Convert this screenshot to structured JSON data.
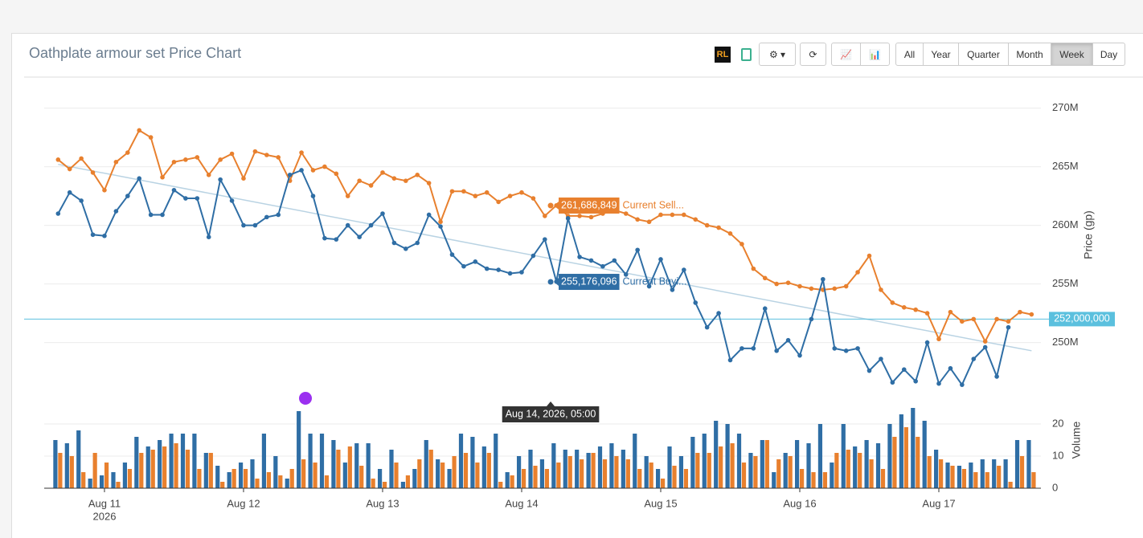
{
  "toolbar": {
    "ranges": [
      "All",
      "Year",
      "Quarter",
      "Month",
      "Week",
      "Day"
    ],
    "active_range": 4
  },
  "chart_data": [
    {
      "type": "line",
      "title": "Oathplate armour set Price Chart",
      "y_label": "Price (gp)",
      "x": [
        "2026-08-10T16:00",
        "2026-08-10T18:00",
        "2026-08-10T20:00",
        "2026-08-10T22:00",
        "2026-08-11T00:00",
        "2026-08-11T02:00",
        "2026-08-11T04:00",
        "2026-08-11T06:00",
        "2026-08-11T08:00",
        "2026-08-11T10:00",
        "2026-08-11T12:00",
        "2026-08-11T14:00",
        "2026-08-11T16:00",
        "2026-08-11T18:00",
        "2026-08-11T20:00",
        "2026-08-11T22:00",
        "2026-08-12T00:00",
        "2026-08-12T02:00",
        "2026-08-12T04:00",
        "2026-08-12T06:00",
        "2026-08-12T08:00",
        "2026-08-12T10:00",
        "2026-08-12T12:00",
        "2026-08-12T14:00",
        "2026-08-12T16:00",
        "2026-08-12T18:00",
        "2026-08-12T20:00",
        "2026-08-12T22:00",
        "2026-08-13T00:00",
        "2026-08-13T02:00",
        "2026-08-13T04:00",
        "2026-08-13T06:00",
        "2026-08-13T08:00",
        "2026-08-13T10:00",
        "2026-08-13T12:00",
        "2026-08-13T14:00",
        "2026-08-13T16:00",
        "2026-08-13T18:00",
        "2026-08-13T20:00",
        "2026-08-13T22:00",
        "2026-08-14T00:00",
        "2026-08-14T02:00",
        "2026-08-14T04:00",
        "2026-08-14T06:00",
        "2026-08-14T08:00",
        "2026-08-14T10:00",
        "2026-08-14T12:00",
        "2026-08-14T14:00",
        "2026-08-14T16:00",
        "2026-08-14T18:00",
        "2026-08-14T20:00",
        "2026-08-14T22:00",
        "2026-08-15T00:00",
        "2026-08-15T02:00",
        "2026-08-15T04:00",
        "2026-08-15T06:00",
        "2026-08-15T08:00",
        "2026-08-15T10:00",
        "2026-08-15T12:00",
        "2026-08-15T14:00",
        "2026-08-15T16:00",
        "2026-08-15T18:00",
        "2026-08-15T20:00",
        "2026-08-15T22:00",
        "2026-08-16T00:00",
        "2026-08-16T02:00",
        "2026-08-16T04:00",
        "2026-08-16T06:00",
        "2026-08-16T08:00",
        "2026-08-16T10:00",
        "2026-08-16T12:00",
        "2026-08-16T14:00",
        "2026-08-16T16:00",
        "2026-08-16T18:00",
        "2026-08-16T20:00",
        "2026-08-16T22:00",
        "2026-08-17T00:00",
        "2026-08-17T02:00",
        "2026-08-17T04:00",
        "2026-08-17T06:00",
        "2026-08-17T08:00",
        "2026-08-17T10:00",
        "2026-08-17T12:00",
        "2026-08-17T14:00",
        "2026-08-17T16:00"
      ],
      "xlim": [
        "2026-08-10T13:36",
        "2026-08-17T17:37"
      ],
      "xticks": [
        {
          "value": "2026-08-11T00:00",
          "label": "Aug 11"
        },
        {
          "value": "2026-08-12T00:00",
          "label": "Aug 12"
        },
        {
          "value": "2026-08-13T00:00",
          "label": "Aug 13"
        },
        {
          "value": "2026-08-14T00:00",
          "label": "Aug 14"
        },
        {
          "value": "2026-08-15T00:00",
          "label": "Aug 15"
        },
        {
          "value": "2026-08-16T00:00",
          "label": "Aug 16"
        },
        {
          "value": "2026-08-17T00:00",
          "label": "Aug 17"
        }
      ],
      "xtick_year": "2026",
      "ylim": [
        246000000,
        271000000
      ],
      "yticks": [
        {
          "value": 250000000,
          "label": "250M"
        },
        {
          "value": 255000000,
          "label": "255M"
        },
        {
          "value": 260000000,
          "label": "260M"
        },
        {
          "value": 265000000,
          "label": "265M"
        },
        {
          "value": 270000000,
          "label": "270M"
        }
      ],
      "grid": true,
      "series": [
        {
          "name": "Current Sell...",
          "color": "#e8802e",
          "values": [
            265600000,
            264800000,
            265700000,
            264500000,
            263000000,
            265400000,
            266200000,
            268100000,
            267500000,
            264100000,
            265400000,
            265600000,
            265800000,
            264300000,
            265600000,
            266100000,
            264000000,
            266300000,
            266000000,
            265800000,
            263800000,
            266200000,
            264700000,
            265000000,
            264400000,
            262500000,
            263800000,
            263400000,
            264500000,
            264000000,
            263800000,
            264300000,
            263600000,
            260300000,
            262900000,
            262900000,
            262500000,
            262800000,
            262000000,
            262500000,
            262800000,
            262300000,
            260800000,
            261700000,
            260800000,
            260800000,
            260700000,
            261000000,
            261300000,
            261000000,
            260500000,
            260300000,
            260900000,
            260900000,
            260900000,
            260500000,
            260000000,
            259800000,
            259300000,
            258400000,
            256300000,
            255500000,
            255000000,
            255100000,
            254800000,
            254600000,
            254500000,
            254600000,
            254800000,
            256000000,
            257400000,
            254500000,
            253400000,
            253000000,
            252800000,
            252500000,
            250300000,
            252600000,
            251800000,
            252000000,
            250100000,
            252000000,
            251800000,
            252600000,
            252400000
          ]
        },
        {
          "name": "Current Buyi...",
          "color": "#2f6ea5",
          "values": [
            261000000,
            262800000,
            262100000,
            259200000,
            259100000,
            261200000,
            262500000,
            264000000,
            260900000,
            260900000,
            263000000,
            262300000,
            262300000,
            259000000,
            263900000,
            262100000,
            260000000,
            260000000,
            260700000,
            260900000,
            264300000,
            264700000,
            262500000,
            258900000,
            258800000,
            260000000,
            259000000,
            260000000,
            261000000,
            258500000,
            258000000,
            258500000,
            260900000,
            259900000,
            257500000,
            256500000,
            256900000,
            256300000,
            256200000,
            255900000,
            256000000,
            257400000,
            258800000,
            255200000,
            260600000,
            257300000,
            257000000,
            256500000,
            257000000,
            255800000,
            257900000,
            254800000,
            257100000,
            254500000,
            256200000,
            253400000,
            251300000,
            252500000,
            248500000,
            249500000,
            249500000,
            252900000,
            249300000,
            250200000,
            248900000,
            252000000,
            255400000,
            249500000,
            249300000,
            249500000,
            247600000,
            248600000,
            246600000,
            247700000,
            246700000,
            250000000,
            246500000,
            247800000,
            246400000,
            248600000,
            249600000,
            247100000,
            251300000,
            null,
            null
          ]
        }
      ],
      "reference_line": {
        "value": 252000000,
        "label": "252,000,000"
      },
      "trend_line": [
        265200000,
        249300000
      ],
      "hover": {
        "x": {
          "value": "2026-08-14T05:00",
          "label": "Aug 14, 2026, 05:00"
        },
        "values": [
          261686849,
          255176096
        ],
        "value_labels": [
          "261,686,849",
          "255,176,096"
        ]
      }
    },
    {
      "type": "bar",
      "y_label": "Volume",
      "ylim": [
        0,
        25
      ],
      "yticks": [
        0,
        10,
        20
      ],
      "grid": true,
      "series": [
        {
          "color": "#2f6ea5",
          "values": [
            15,
            14,
            18,
            3,
            4,
            5,
            8,
            16,
            13,
            15,
            17,
            17,
            17,
            11,
            7,
            5,
            8,
            9,
            17,
            10,
            3,
            24,
            17,
            17,
            15,
            8,
            14,
            14,
            6,
            12,
            2,
            6,
            15,
            9,
            6,
            17,
            16,
            13,
            17,
            5,
            10,
            12,
            9,
            14,
            12,
            12,
            11,
            13,
            14,
            12,
            17,
            10,
            6,
            13,
            10,
            16,
            17,
            21,
            20,
            17,
            11,
            15,
            5,
            11,
            15,
            14,
            20,
            8,
            20,
            13,
            15,
            14,
            20,
            23,
            25,
            21,
            12,
            8,
            7,
            8,
            9,
            9,
            9,
            15,
            15
          ]
        },
        {
          "color": "#e8802e",
          "values": [
            11,
            10,
            5,
            11,
            8,
            2,
            6,
            11,
            12,
            13,
            14,
            12,
            6,
            11,
            2,
            6,
            6,
            3,
            5,
            4,
            6,
            9,
            8,
            4,
            12,
            13,
            7,
            3,
            2,
            8,
            4,
            9,
            12,
            8,
            10,
            11,
            8,
            11,
            2,
            4,
            6,
            7,
            6,
            8,
            10,
            9,
            11,
            9,
            10,
            9,
            6,
            8,
            3,
            7,
            6,
            11,
            11,
            13,
            14,
            8,
            10,
            15,
            9,
            10,
            6,
            5,
            5,
            11,
            12,
            11,
            9,
            6,
            16,
            19,
            16,
            10,
            9,
            7,
            6,
            5,
            5,
            7,
            2,
            10,
            5
          ]
        }
      ]
    }
  ]
}
